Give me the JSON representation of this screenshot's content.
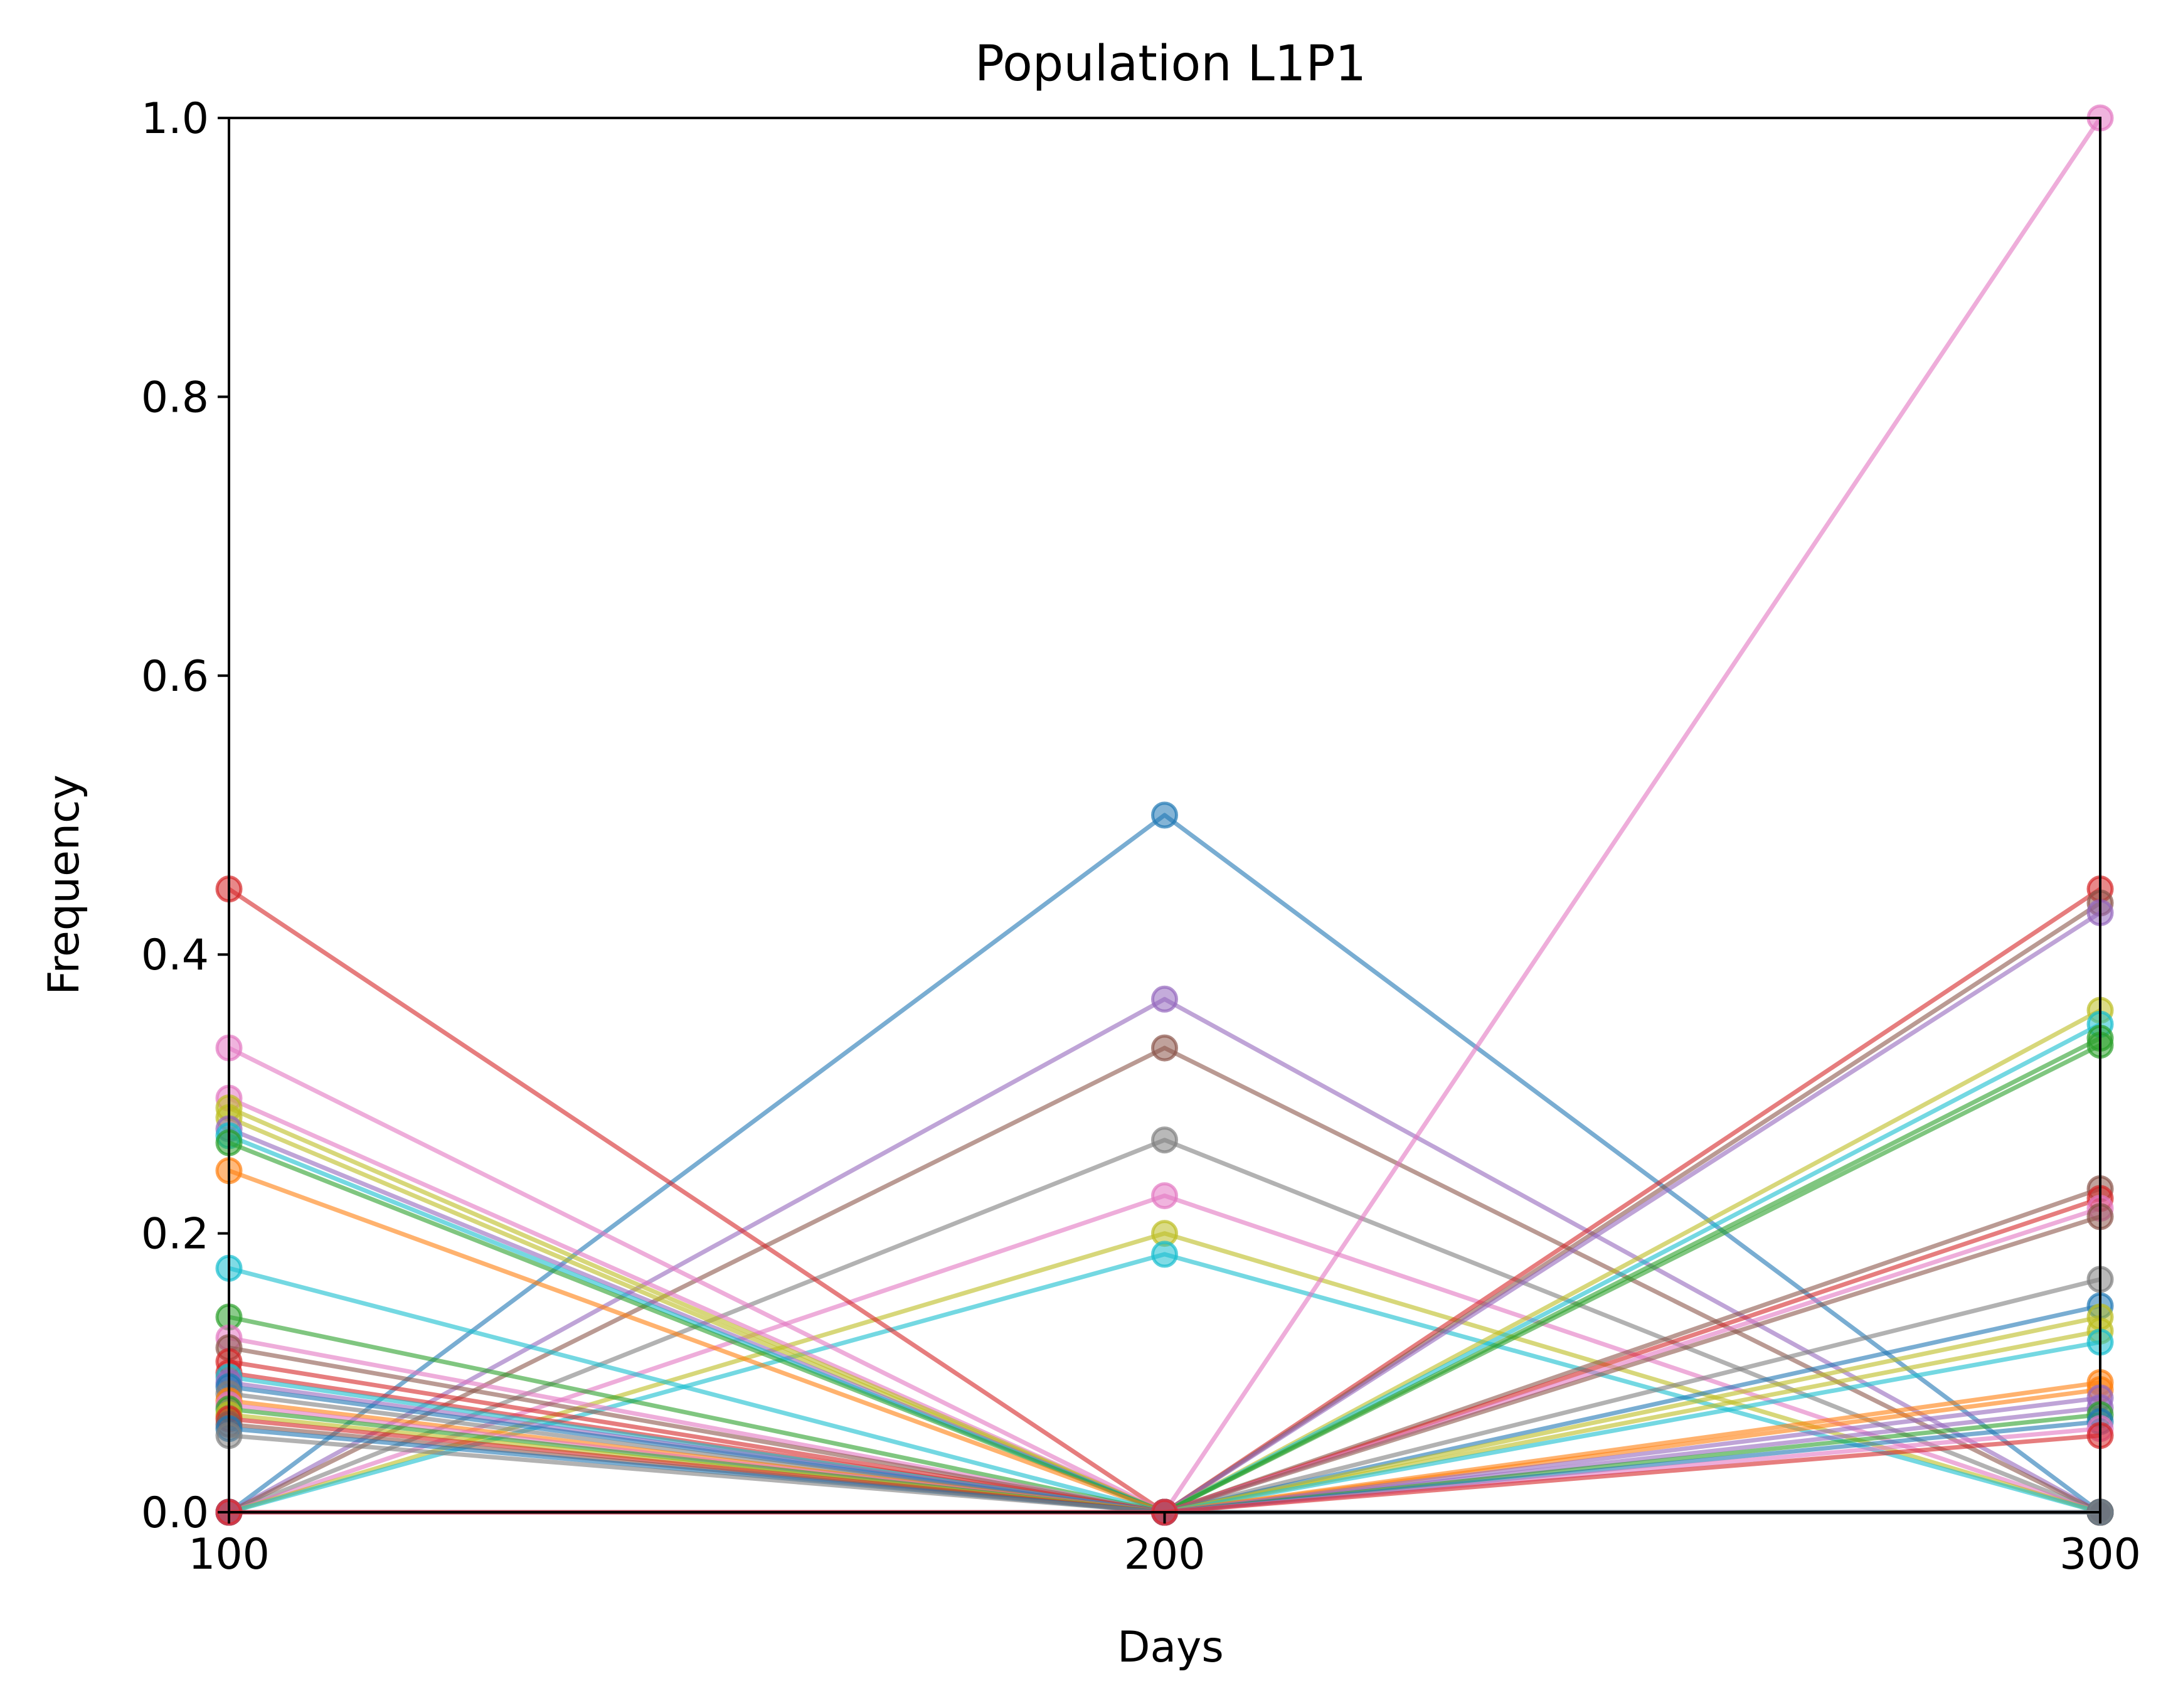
{
  "chart_data": {
    "type": "line",
    "title": "Population L1P1",
    "xlabel": "Days",
    "ylabel": "Frequency",
    "x": [
      100,
      200,
      300
    ],
    "xlim": [
      100,
      300
    ],
    "ylim": [
      0.0,
      1.0
    ],
    "xticks": [
      "100",
      "200",
      "300"
    ],
    "yticks": [
      "0.0",
      "0.2",
      "0.4",
      "0.6",
      "0.8",
      "1.0"
    ],
    "grid": false,
    "legend": "none",
    "palette": [
      "#1f77b4",
      "#ff7f0e",
      "#2ca02c",
      "#d62728",
      "#9467bd",
      "#8c564b",
      "#e377c2",
      "#7f7f7f",
      "#bcbd22",
      "#17becf"
    ],
    "series": [
      {
        "values": [
          0.0,
          0.5,
          0.0
        ],
        "color": "#1f77b4"
      },
      {
        "values": [
          0.0,
          0.368,
          0.0
        ],
        "color": "#9467bd"
      },
      {
        "values": [
          0.0,
          0.333,
          0.0
        ],
        "color": "#8c564b"
      },
      {
        "values": [
          0.0,
          0.267,
          0.0
        ],
        "color": "#7f7f7f"
      },
      {
        "values": [
          0.0,
          0.227,
          0.0
        ],
        "color": "#e377c2"
      },
      {
        "values": [
          0.0,
          0.2,
          0.0
        ],
        "color": "#bcbd22"
      },
      {
        "values": [
          0.0,
          0.185,
          0.0
        ],
        "color": "#17becf"
      },
      {
        "values": [
          0.0,
          0.0,
          1.0
        ],
        "color": "#e377c2"
      },
      {
        "values": [
          0.447,
          0.0,
          0.0
        ],
        "color": "#d62728"
      },
      {
        "values": [
          0.333,
          0.0,
          0.0
        ],
        "color": "#e377c2"
      },
      {
        "values": [
          0.297,
          0.0,
          0.0
        ],
        "color": "#e377c2"
      },
      {
        "values": [
          0.29,
          0.0,
          0.0
        ],
        "color": "#bcbd22"
      },
      {
        "values": [
          0.283,
          0.0,
          0.0
        ],
        "color": "#bcbd22"
      },
      {
        "values": [
          0.275,
          0.0,
          0.0
        ],
        "color": "#9467bd"
      },
      {
        "values": [
          0.27,
          0.0,
          0.0
        ],
        "color": "#17becf"
      },
      {
        "values": [
          0.265,
          0.0,
          0.0
        ],
        "color": "#2ca02c"
      },
      {
        "values": [
          0.245,
          0.0,
          0.0
        ],
        "color": "#ff7f0e"
      },
      {
        "values": [
          0.175,
          0.0,
          0.0
        ],
        "color": "#17becf"
      },
      {
        "values": [
          0.14,
          0.0,
          0.0
        ],
        "color": "#2ca02c"
      },
      {
        "values": [
          0.125,
          0.0,
          0.0
        ],
        "color": "#e377c2"
      },
      {
        "values": [
          0.118,
          0.0,
          0.0
        ],
        "color": "#8c564b"
      },
      {
        "values": [
          0.108,
          0.0,
          0.0
        ],
        "color": "#d62728"
      },
      {
        "values": [
          0.1,
          0.0,
          0.0
        ],
        "color": "#d62728"
      },
      {
        "values": [
          0.097,
          0.0,
          0.0
        ],
        "color": "#17becf"
      },
      {
        "values": [
          0.093,
          0.0,
          0.0
        ],
        "color": "#9467bd"
      },
      {
        "values": [
          0.09,
          0.0,
          0.0
        ],
        "color": "#1f77b4"
      },
      {
        "values": [
          0.085,
          0.0,
          0.0
        ],
        "color": "#7f7f7f"
      },
      {
        "values": [
          0.08,
          0.0,
          0.0
        ],
        "color": "#ff7f0e"
      },
      {
        "values": [
          0.077,
          0.0,
          0.0
        ],
        "color": "#e377c2"
      },
      {
        "values": [
          0.074,
          0.0,
          0.0
        ],
        "color": "#2ca02c"
      },
      {
        "values": [
          0.07,
          0.0,
          0.0
        ],
        "color": "#bcbd22"
      },
      {
        "values": [
          0.067,
          0.0,
          0.0
        ],
        "color": "#d62728"
      },
      {
        "values": [
          0.063,
          0.0,
          0.0
        ],
        "color": "#8c564b"
      },
      {
        "values": [
          0.06,
          0.0,
          0.0
        ],
        "color": "#1f77b4"
      },
      {
        "values": [
          0.055,
          0.0,
          0.0
        ],
        "color": "#7f7f7f"
      },
      {
        "values": [
          0.0,
          0.0,
          0.447
        ],
        "color": "#d62728"
      },
      {
        "values": [
          0.0,
          0.0,
          0.437
        ],
        "color": "#8c564b"
      },
      {
        "values": [
          0.0,
          0.0,
          0.43
        ],
        "color": "#9467bd"
      },
      {
        "values": [
          0.0,
          0.0,
          0.36
        ],
        "color": "#bcbd22"
      },
      {
        "values": [
          0.0,
          0.0,
          0.35
        ],
        "color": "#17becf"
      },
      {
        "values": [
          0.0,
          0.0,
          0.34
        ],
        "color": "#2ca02c"
      },
      {
        "values": [
          0.0,
          0.0,
          0.335
        ],
        "color": "#2ca02c"
      },
      {
        "values": [
          0.0,
          0.0,
          0.232
        ],
        "color": "#8c564b"
      },
      {
        "values": [
          0.0,
          0.0,
          0.225
        ],
        "color": "#d62728"
      },
      {
        "values": [
          0.0,
          0.0,
          0.218
        ],
        "color": "#e377c2"
      },
      {
        "values": [
          0.0,
          0.0,
          0.212
        ],
        "color": "#8c564b"
      },
      {
        "values": [
          0.0,
          0.0,
          0.167
        ],
        "color": "#7f7f7f"
      },
      {
        "values": [
          0.0,
          0.0,
          0.148
        ],
        "color": "#1f77b4"
      },
      {
        "values": [
          0.0,
          0.0,
          0.14
        ],
        "color": "#bcbd22"
      },
      {
        "values": [
          0.0,
          0.0,
          0.13
        ],
        "color": "#bcbd22"
      },
      {
        "values": [
          0.0,
          0.0,
          0.122
        ],
        "color": "#17becf"
      },
      {
        "values": [
          0.0,
          0.0,
          0.093
        ],
        "color": "#ff7f0e"
      },
      {
        "values": [
          0.0,
          0.0,
          0.088
        ],
        "color": "#ff7f0e"
      },
      {
        "values": [
          0.0,
          0.0,
          0.082
        ],
        "color": "#9467bd"
      },
      {
        "values": [
          0.0,
          0.0,
          0.075
        ],
        "color": "#9467bd"
      },
      {
        "values": [
          0.0,
          0.0,
          0.07
        ],
        "color": "#2ca02c"
      },
      {
        "values": [
          0.0,
          0.0,
          0.065
        ],
        "color": "#1f77b4"
      },
      {
        "values": [
          0.0,
          0.0,
          0.06
        ],
        "color": "#e377c2"
      },
      {
        "values": [
          0.0,
          0.0,
          0.055
        ],
        "color": "#d62728"
      }
    ]
  }
}
